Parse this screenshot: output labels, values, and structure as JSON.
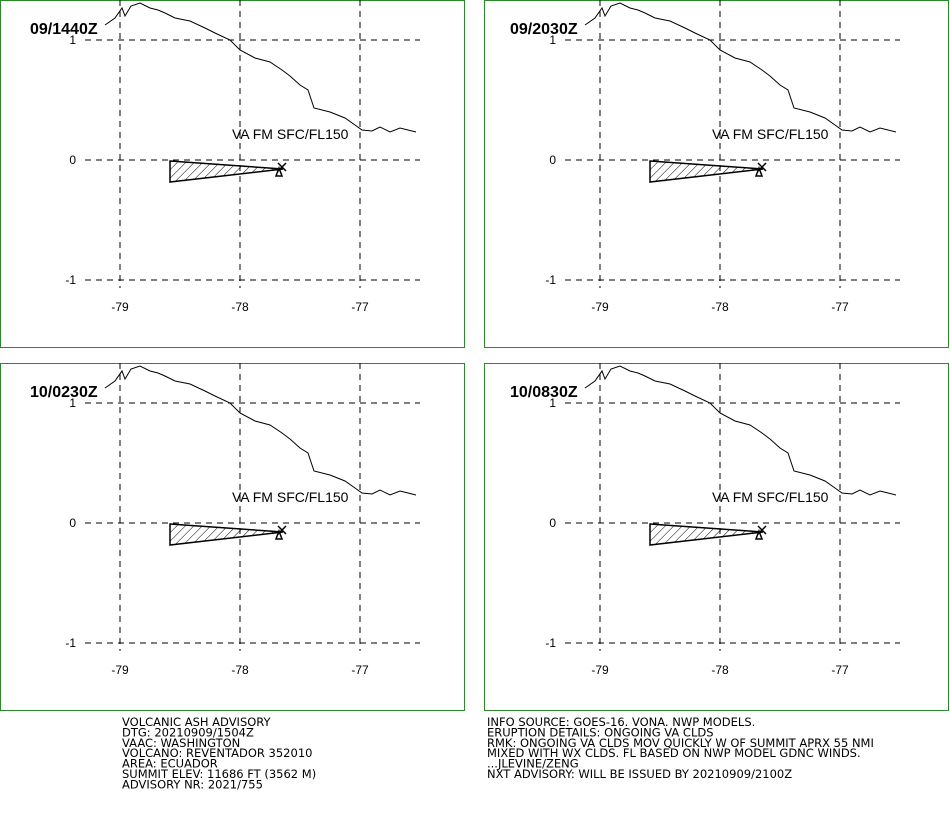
{
  "panels": [
    {
      "time": "09/1440Z",
      "label": "VA FM SFC/FL150"
    },
    {
      "time": "09/2030Z",
      "label": "VA FM SFC/FL150"
    },
    {
      "time": "10/0230Z",
      "label": "VA FM SFC/FL150"
    },
    {
      "time": "10/0830Z",
      "label": "VA FM SFC/FL150"
    }
  ],
  "lat_ticks": [
    1,
    0,
    -1
  ],
  "lon_ticks": [
    -79,
    -78,
    -77
  ],
  "advisory_left": [
    "VOLCANIC ASH ADVISORY",
    "DTG: 20210909/1504Z",
    "VAAC: WASHINGTON",
    "VOLCANO: REVENTADOR 352010",
    "AREA: ECUADOR",
    "SUMMIT ELEV: 11686 FT (3562 M)",
    "ADVISORY NR: 2021/755"
  ],
  "advisory_right": [
    "INFO SOURCE: GOES-16. VONA. NWP MODELS.",
    "ERUPTION DETAILS: ONGOING VA CLDS",
    "RMK: ONGOING VA CLDS MOV QUICKLY W OF SUMMIT APRX 55 NMI",
    "MIXED WITH WX CLDS. FL BASED ON NWP MODEL GDNC WINDS.",
    "...JLEVINE/ZENG",
    "NXT ADVISORY: WILL BE ISSUED BY 20210909/2100Z"
  ]
}
